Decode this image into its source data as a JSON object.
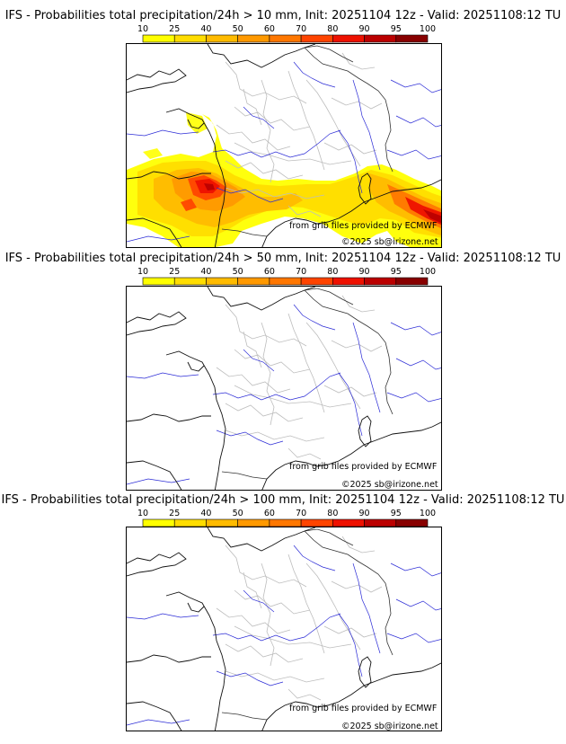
{
  "colorbar": {
    "ticks": [
      "10",
      "25",
      "40",
      "50",
      "60",
      "70",
      "80",
      "90",
      "95",
      "100"
    ],
    "colors": [
      "#ffff00",
      "#ffdd00",
      "#ffbb00",
      "#ff9900",
      "#ff7700",
      "#ff4400",
      "#ee1100",
      "#bb0000",
      "#880000"
    ]
  },
  "panels": [
    {
      "title": "IFS - Probabilities total precipitation/24h > 10 mm, Init: 20251104 12z - Valid: 20251108:12 TU",
      "threshold_mm": 10,
      "has_precip": true
    },
    {
      "title": "IFS - Probabilities total precipitation/24h > 50 mm, Init: 20251104 12z - Valid: 20251108:12 TU",
      "threshold_mm": 50,
      "has_precip": false
    },
    {
      "title": "IFS - Probabilities total precipitation/24h > 100 mm, Init: 20251104 12z - Valid: 20251108:12 TU",
      "threshold_mm": 100,
      "has_precip": false
    }
  ],
  "credits": {
    "source": "from grib files provided by ECMWF",
    "copyright": "©2025 sb@irizone.net"
  }
}
